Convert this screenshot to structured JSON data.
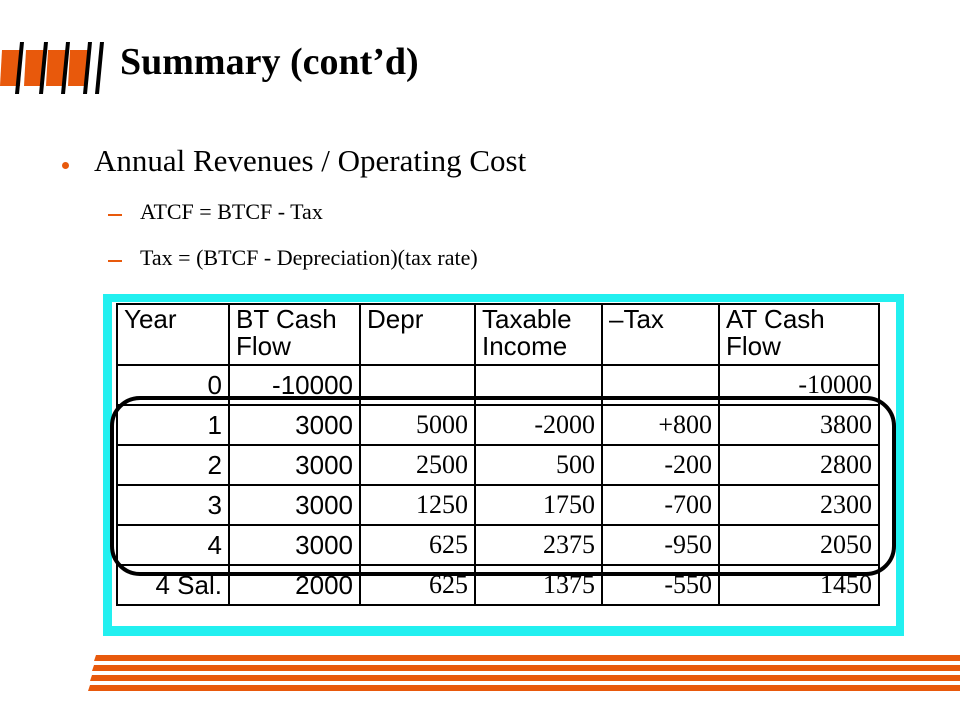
{
  "slide": {
    "title": "Summary (cont’d)",
    "bullet": "Annual Revenues / Operating Cost",
    "subs": [
      "ATCF = BTCF - Tax",
      "Tax = (BTCF - Depreciation)(tax rate)"
    ],
    "accent_color": "#e8590c",
    "panel_color": "#22f0f0"
  },
  "table": {
    "headers": [
      [
        "Year"
      ],
      [
        "BT Cash",
        "Flow"
      ],
      [
        "Depr"
      ],
      [
        "Taxable",
        "Income"
      ],
      [
        "–Tax"
      ],
      [
        "AT Cash",
        "Flow"
      ]
    ],
    "rows": [
      [
        "0",
        "-10000",
        "",
        "",
        "",
        "-10000"
      ],
      [
        "1",
        "3000",
        "5000",
        "-2000",
        "+800",
        "3800"
      ],
      [
        "2",
        "3000",
        "2500",
        "500",
        "-200",
        "2800"
      ],
      [
        "3",
        "3000",
        "1250",
        "1750",
        "-700",
        "2300"
      ],
      [
        "4",
        "3000",
        "625",
        "2375",
        "-950",
        "2050"
      ],
      [
        "4 Sal.",
        "2000",
        "625",
        "1375",
        "-550",
        "1450"
      ]
    ]
  }
}
